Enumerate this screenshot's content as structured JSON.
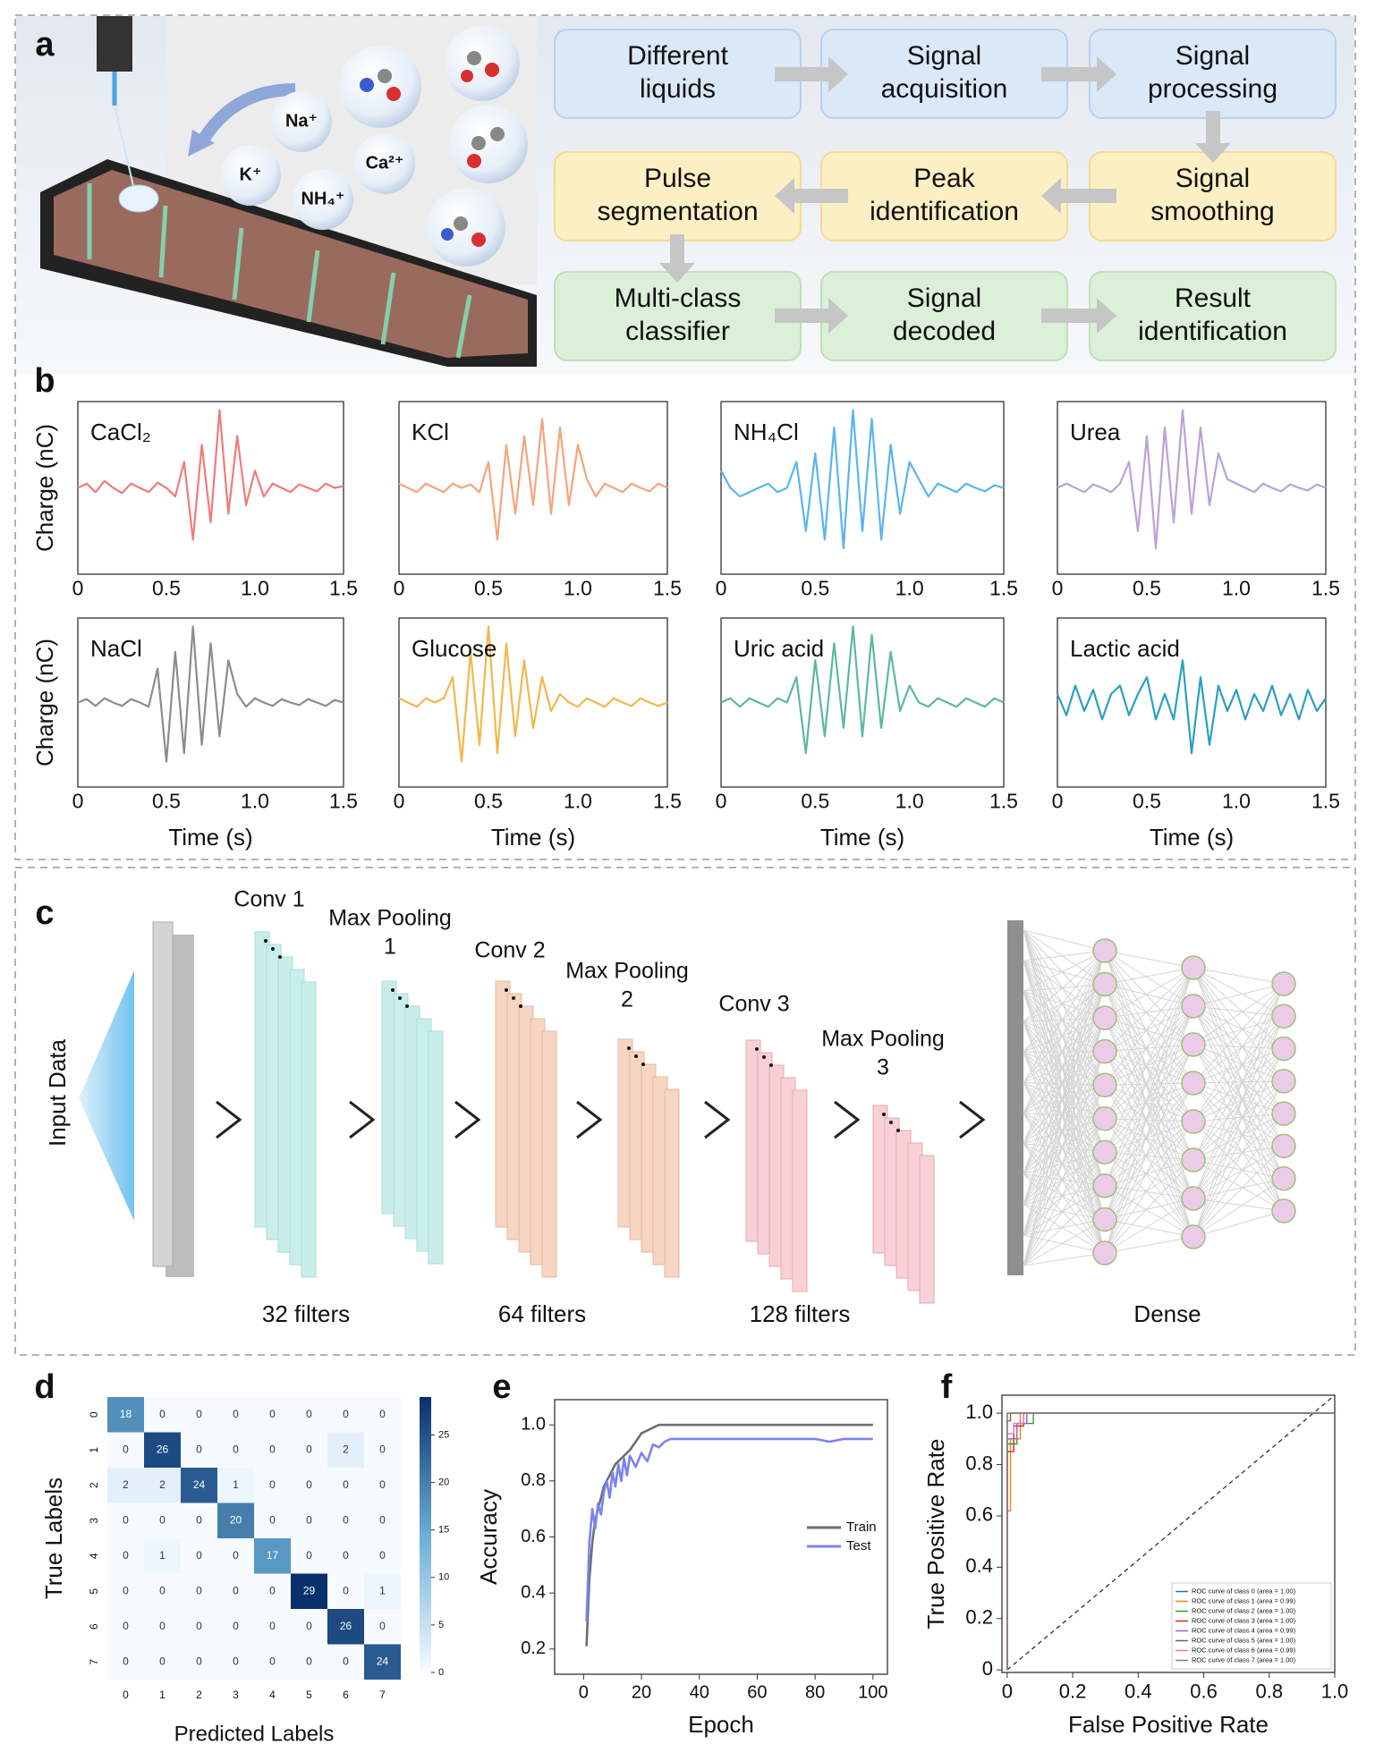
{
  "panel_labels": [
    "a",
    "b",
    "c",
    "d",
    "e",
    "f"
  ],
  "illustration": {
    "ions": [
      "Na⁺",
      "K⁺",
      "NH₄⁺",
      "Ca²⁺"
    ]
  },
  "flowchart": {
    "steps": [
      [
        "Different",
        "liquids"
      ],
      [
        "Signal",
        "acquisition"
      ],
      [
        "Signal",
        "processing"
      ],
      [
        "Signal",
        "smoothing"
      ],
      [
        "Peak",
        "identification"
      ],
      [
        "Pulse",
        "segmentation"
      ],
      [
        "Multi-class",
        "classifier"
      ],
      [
        "Signal",
        "decoded"
      ],
      [
        "Result",
        "identification"
      ]
    ]
  },
  "cnn": {
    "input_label": "Input Data",
    "layer_labels": [
      [
        "Conv 1"
      ],
      [
        "Max Pooling",
        "1"
      ],
      [
        "Conv 2"
      ],
      [
        "Max Pooling",
        "2"
      ],
      [
        "Conv 3"
      ],
      [
        "Max Pooling",
        "3"
      ]
    ],
    "filters": [
      "32 filters",
      "64 filters",
      "128 filters"
    ],
    "dense_label": "Dense"
  },
  "chart_data": [
    {
      "type": "line",
      "title": "CaCl₂",
      "ylabel": "Charge (nC)",
      "x": [
        0,
        0.05,
        0.1,
        0.15,
        0.2,
        0.25,
        0.3,
        0.35,
        0.4,
        0.45,
        0.5,
        0.55,
        0.6,
        0.65,
        0.7,
        0.75,
        0.8,
        0.85,
        0.9,
        0.95,
        1,
        1.05,
        1.1,
        1.15,
        1.2,
        1.25,
        1.3,
        1.35,
        1.4,
        1.45,
        1.5
      ],
      "series": [
        {
          "color": "#f07b7b",
          "values": [
            0,
            0.05,
            -0.05,
            0.08,
            0,
            -0.06,
            0.05,
            0,
            -0.05,
            0.06,
            0,
            -0.1,
            0.3,
            -0.6,
            0.5,
            -0.4,
            0.9,
            -0.3,
            0.6,
            -0.2,
            0.2,
            -0.1,
            0.05,
            0,
            -0.05,
            0.04,
            0,
            -0.04,
            0.05,
            0,
            0.02
          ]
        }
      ],
      "xlim": [
        0,
        1.5
      ],
      "ylim": [
        -1,
        1
      ],
      "xticks": [
        0,
        0.5,
        {
          "value": 1,
          "label": "1.0"
        },
        1.5
      ]
    },
    {
      "type": "line",
      "title": "KCl",
      "x": [
        0,
        0.05,
        0.1,
        0.15,
        0.2,
        0.25,
        0.3,
        0.35,
        0.4,
        0.45,
        0.5,
        0.55,
        0.6,
        0.65,
        0.7,
        0.75,
        0.8,
        0.85,
        0.9,
        0.95,
        1,
        1.05,
        1.1,
        1.15,
        1.2,
        1.25,
        1.3,
        1.35,
        1.4,
        1.45,
        1.5
      ],
      "series": [
        {
          "color": "#f4a57b",
          "values": [
            0.05,
            0,
            -0.05,
            0.05,
            0,
            -0.05,
            0.05,
            0,
            0.04,
            -0.05,
            0.3,
            -0.6,
            0.5,
            -0.3,
            0.6,
            -0.2,
            0.8,
            -0.3,
            0.7,
            -0.2,
            0.5,
            0.1,
            -0.1,
            0.05,
            0,
            -0.05,
            0.05,
            0,
            -0.04,
            0.05,
            0
          ]
        }
      ],
      "xlim": [
        0,
        1.5
      ],
      "ylim": [
        -1,
        1
      ],
      "xticks": [
        0,
        0.5,
        {
          "value": 1,
          "label": "1.0"
        },
        1.5
      ]
    },
    {
      "type": "line",
      "title": "NH₄Cl",
      "x": [
        0,
        0.05,
        0.1,
        0.15,
        0.2,
        0.25,
        0.3,
        0.35,
        0.4,
        0.45,
        0.5,
        0.55,
        0.6,
        0.65,
        0.7,
        0.75,
        0.8,
        0.85,
        0.9,
        0.95,
        1,
        1.05,
        1.1,
        1.15,
        1.2,
        1.25,
        1.3,
        1.35,
        1.4,
        1.45,
        1.5
      ],
      "series": [
        {
          "color": "#5ab4f0",
          "values": [
            0.2,
            0,
            -0.1,
            -0.05,
            0,
            0.05,
            -0.05,
            0,
            0.3,
            -0.5,
            0.4,
            -0.6,
            0.7,
            -0.7,
            0.9,
            -0.5,
            0.8,
            -0.6,
            0.5,
            -0.3,
            0.3,
            0.1,
            -0.1,
            0.05,
            0,
            -0.05,
            0.05,
            0,
            -0.04,
            0.03,
            0
          ]
        }
      ],
      "xlim": [
        0,
        1.5
      ],
      "ylim": [
        -1,
        1
      ],
      "xticks": [
        0,
        0.5,
        {
          "value": 1,
          "label": "1.0"
        },
        1.5
      ]
    },
    {
      "type": "line",
      "title": "Urea",
      "x": [
        0,
        0.05,
        0.1,
        0.15,
        0.2,
        0.25,
        0.3,
        0.35,
        0.4,
        0.45,
        0.5,
        0.55,
        0.6,
        0.65,
        0.7,
        0.75,
        0.8,
        0.85,
        0.9,
        0.95,
        1,
        1.05,
        1.1,
        1.15,
        1.2,
        1.25,
        1.3,
        1.35,
        1.4,
        1.45,
        1.5
      ],
      "series": [
        {
          "color": "#b7a4d8",
          "values": [
            0,
            0.05,
            0,
            -0.05,
            0.04,
            0,
            -0.05,
            0.05,
            0.3,
            -0.5,
            0.6,
            -0.7,
            0.7,
            -0.4,
            0.9,
            -0.3,
            0.7,
            -0.2,
            0.4,
            0.1,
            0.05,
            0,
            -0.05,
            0.05,
            0,
            -0.04,
            0.04,
            0,
            -0.03,
            0.04,
            0
          ]
        }
      ],
      "xlim": [
        0,
        1.5
      ],
      "ylim": [
        -1,
        1
      ],
      "xticks": [
        0,
        0.5,
        {
          "value": 1,
          "label": "1.0"
        },
        1.5
      ]
    },
    {
      "type": "line",
      "title": "NaCl",
      "ylabel": "Charge (nC)",
      "xlabel": "Time (s)",
      "x": [
        0,
        0.05,
        0.1,
        0.15,
        0.2,
        0.25,
        0.3,
        0.35,
        0.4,
        0.45,
        0.5,
        0.55,
        0.6,
        0.65,
        0.7,
        0.75,
        0.8,
        0.85,
        0.9,
        0.95,
        1,
        1.05,
        1.1,
        1.15,
        1.2,
        1.25,
        1.3,
        1.35,
        1.4,
        1.45,
        1.5
      ],
      "series": [
        {
          "color": "#8c8c8c",
          "values": [
            0,
            0.04,
            -0.04,
            0.05,
            0,
            -0.04,
            0.04,
            0,
            -0.05,
            0.4,
            -0.7,
            0.6,
            -0.6,
            0.9,
            -0.5,
            0.7,
            -0.4,
            0.5,
            0.1,
            -0.05,
            0.05,
            0,
            -0.04,
            0.04,
            0,
            -0.03,
            0.04,
            0,
            -0.04,
            0.03,
            0
          ]
        }
      ],
      "xlim": [
        0,
        1.5
      ],
      "ylim": [
        -1,
        1
      ],
      "xticks": [
        0,
        0.5,
        {
          "value": 1,
          "label": "1.0"
        },
        1.5
      ]
    },
    {
      "type": "line",
      "title": "Glucose",
      "xlabel": "Time (s)",
      "x": [
        0,
        0.05,
        0.1,
        0.15,
        0.2,
        0.25,
        0.3,
        0.35,
        0.4,
        0.45,
        0.5,
        0.55,
        0.6,
        0.65,
        0.7,
        0.75,
        0.8,
        0.85,
        0.9,
        0.95,
        1,
        1.05,
        1.1,
        1.15,
        1.2,
        1.25,
        1.3,
        1.35,
        1.4,
        1.45,
        1.5
      ],
      "series": [
        {
          "color": "#f4b74a",
          "values": [
            0.05,
            0,
            -0.05,
            0.05,
            0,
            0.05,
            0.3,
            -0.7,
            0.6,
            -0.5,
            0.9,
            -0.6,
            0.7,
            -0.4,
            0.5,
            -0.3,
            0.3,
            -0.1,
            0.1,
            0,
            -0.05,
            0.05,
            0,
            -0.05,
            0.05,
            0,
            -0.04,
            0.05,
            0,
            -0.04,
            0
          ]
        }
      ],
      "xlim": [
        0,
        1.5
      ],
      "ylim": [
        -1,
        1
      ],
      "xticks": [
        0,
        0.5,
        {
          "value": 1,
          "label": "1.0"
        },
        1.5
      ]
    },
    {
      "type": "line",
      "title": "Uric acid",
      "xlabel": "Time (s)",
      "x": [
        0,
        0.05,
        0.1,
        0.15,
        0.2,
        0.25,
        0.3,
        0.35,
        0.4,
        0.45,
        0.5,
        0.55,
        0.6,
        0.65,
        0.7,
        0.75,
        0.8,
        0.85,
        0.9,
        0.95,
        1,
        1.05,
        1.1,
        1.15,
        1.2,
        1.25,
        1.3,
        1.35,
        1.4,
        1.45,
        1.5
      ],
      "series": [
        {
          "color": "#5cb8a0",
          "values": [
            0,
            0.05,
            -0.05,
            0.05,
            0,
            -0.05,
            0.05,
            0,
            0.3,
            -0.6,
            0.5,
            -0.4,
            0.7,
            -0.3,
            0.9,
            -0.4,
            0.8,
            -0.3,
            0.6,
            -0.1,
            0.2,
            0,
            -0.05,
            0.05,
            0,
            -0.05,
            0.05,
            0,
            -0.05,
            0.05,
            0
          ]
        }
      ],
      "xlim": [
        0,
        1.5
      ],
      "ylim": [
        -1,
        1
      ],
      "xticks": [
        0,
        0.5,
        {
          "value": 1,
          "label": "1.0"
        },
        1.5
      ]
    },
    {
      "type": "line",
      "title": "Lactic acid",
      "xlabel": "Time (s)",
      "x": [
        0,
        0.05,
        0.1,
        0.15,
        0.2,
        0.25,
        0.3,
        0.35,
        0.4,
        0.45,
        0.5,
        0.55,
        0.6,
        0.65,
        0.7,
        0.75,
        0.8,
        0.85,
        0.9,
        0.95,
        1,
        1.05,
        1.1,
        1.15,
        1.2,
        1.25,
        1.3,
        1.35,
        1.4,
        1.45,
        1.5
      ],
      "series": [
        {
          "color": "#2a9fc2",
          "values": [
            0.1,
            -0.15,
            0.2,
            -0.1,
            0.15,
            -0.2,
            0.1,
            0.2,
            -0.15,
            0.1,
            0.3,
            -0.2,
            0.1,
            -0.2,
            0.5,
            -0.6,
            0.3,
            -0.5,
            0.2,
            -0.1,
            0.15,
            -0.2,
            0.1,
            -0.1,
            0.2,
            -0.15,
            0.1,
            -0.2,
            0.15,
            -0.1,
            0.05
          ]
        }
      ],
      "xlim": [
        0,
        1.5
      ],
      "ylim": [
        -1,
        1
      ],
      "xticks": [
        0,
        0.5,
        {
          "value": 1,
          "label": "1.0"
        },
        1.5
      ]
    },
    {
      "type": "heatmap",
      "xlabel": "Predicted Labels",
      "ylabel": "True Labels",
      "categories": [
        "0",
        "1",
        "2",
        "3",
        "4",
        "5",
        "6",
        "7"
      ],
      "values": [
        [
          18,
          0,
          0,
          0,
          0,
          0,
          0,
          0
        ],
        [
          0,
          26,
          0,
          0,
          0,
          0,
          2,
          0
        ],
        [
          2,
          2,
          24,
          1,
          0,
          0,
          0,
          0
        ],
        [
          0,
          0,
          0,
          20,
          0,
          0,
          0,
          0
        ],
        [
          0,
          1,
          0,
          0,
          17,
          0,
          0,
          0
        ],
        [
          0,
          0,
          0,
          0,
          0,
          29,
          0,
          1
        ],
        [
          0,
          0,
          0,
          0,
          0,
          0,
          26,
          0
        ],
        [
          0,
          0,
          0,
          0,
          0,
          0,
          0,
          24
        ]
      ],
      "clim": [
        0,
        29
      ],
      "cticks": [
        0,
        5,
        10,
        15,
        20,
        25
      ],
      "cmap": [
        "#f7fbff",
        "#6baed6",
        "#08306b"
      ]
    },
    {
      "type": "line",
      "xlabel": "Epoch",
      "ylabel": "Accuracy",
      "legend": "right",
      "x": [
        1,
        2,
        3,
        4,
        5,
        6,
        7,
        8,
        9,
        10,
        11,
        12,
        13,
        14,
        15,
        16,
        18,
        20,
        22,
        24,
        26,
        28,
        30,
        35,
        40,
        45,
        50,
        55,
        60,
        65,
        70,
        75,
        80,
        85,
        90,
        95,
        100
      ],
      "series": [
        {
          "name": "Train",
          "color": "#6e6e6e",
          "values": [
            0.21,
            0.45,
            0.58,
            0.66,
            0.7,
            0.74,
            0.78,
            0.8,
            0.82,
            0.84,
            0.86,
            0.87,
            0.88,
            0.89,
            0.9,
            0.91,
            0.94,
            0.97,
            0.98,
            0.99,
            1,
            1,
            1,
            1,
            1,
            1,
            1,
            1,
            1,
            1,
            1,
            1,
            1,
            1,
            1,
            1,
            1
          ]
        },
        {
          "name": "Test",
          "color": "#7b84f0",
          "values": [
            0.3,
            0.58,
            0.7,
            0.63,
            0.72,
            0.68,
            0.76,
            0.8,
            0.74,
            0.83,
            0.78,
            0.86,
            0.8,
            0.88,
            0.82,
            0.89,
            0.85,
            0.9,
            0.87,
            0.93,
            0.92,
            0.94,
            0.95,
            0.95,
            0.95,
            0.95,
            0.95,
            0.95,
            0.95,
            0.95,
            0.95,
            0.95,
            0.95,
            0.94,
            0.95,
            0.95,
            0.95
          ]
        }
      ],
      "xlim": [
        -10,
        105
      ],
      "ylim": [
        0.11,
        1.09
      ],
      "xticks": [
        0,
        20,
        40,
        60,
        80,
        100
      ],
      "yticks": [
        0.2,
        0.4,
        0.6,
        0.8,
        {
          "value": 1,
          "label": "1.0"
        }
      ]
    },
    {
      "type": "line",
      "xlabel": "False Positive Rate",
      "ylabel": "True Positive Rate",
      "legend": "lower right",
      "series": [
        {
          "name": "ROC curve of class 0 (area = 1.00)",
          "color": "#1f77b4",
          "x": [
            0,
            0,
            1
          ],
          "values": [
            0,
            1,
            1
          ]
        },
        {
          "name": "ROC curve of class 1 (area = 0.99)",
          "color": "#ff7f0e",
          "x": [
            0,
            0,
            0.01,
            0.01,
            0.04,
            0.04,
            1
          ],
          "values": [
            0,
            0.62,
            0.62,
            0.9,
            0.9,
            1,
            1
          ]
        },
        {
          "name": "ROC curve of class 2 (area = 1.00)",
          "color": "#2ca02c",
          "x": [
            0,
            0,
            0.03,
            0.03,
            0.08,
            0.08,
            1
          ],
          "values": [
            0,
            0.88,
            0.88,
            0.96,
            0.96,
            1,
            1
          ]
        },
        {
          "name": "ROC curve of class 3 (area = 1.00)",
          "color": "#d62728",
          "x": [
            0,
            0,
            0.02,
            0.02,
            0.05,
            0.05,
            1
          ],
          "values": [
            0,
            0.85,
            0.85,
            0.95,
            0.95,
            1,
            1
          ]
        },
        {
          "name": "ROC curve of class 4 (area = 0.99)",
          "color": "#9467bd",
          "x": [
            0,
            0,
            0.03,
            0.03,
            0.06,
            0.06,
            1
          ],
          "values": [
            0,
            0.9,
            0.9,
            0.96,
            0.96,
            1,
            1
          ]
        },
        {
          "name": "ROC curve of class 5 (area = 1.00)",
          "color": "#8c564b",
          "x": [
            0,
            0,
            0.01,
            0.01,
            1
          ],
          "values": [
            0,
            0.97,
            0.97,
            1,
            1
          ]
        },
        {
          "name": "ROC curve of class 6 (area = 0.99)",
          "color": "#e377c2",
          "x": [
            0,
            0,
            0.02,
            0.02,
            0.05,
            0.05,
            1
          ],
          "values": [
            0,
            0.92,
            0.92,
            0.96,
            0.96,
            1,
            1
          ]
        },
        {
          "name": "ROC curve of class 7 (area = 1.00)",
          "color": "#7f7f7f",
          "x": [
            0,
            0,
            1
          ],
          "values": [
            0,
            1,
            1
          ]
        }
      ],
      "xlim": [
        -0.016,
        1
      ],
      "ylim": [
        -0.01,
        1.07
      ],
      "xticks": [
        0,
        0.2,
        0.4,
        0.6,
        0.8,
        {
          "value": 1,
          "label": "1.0"
        }
      ],
      "yticks": [
        0,
        0.2,
        0.4,
        0.6,
        0.8,
        {
          "value": 1,
          "label": "1.0"
        }
      ]
    }
  ]
}
